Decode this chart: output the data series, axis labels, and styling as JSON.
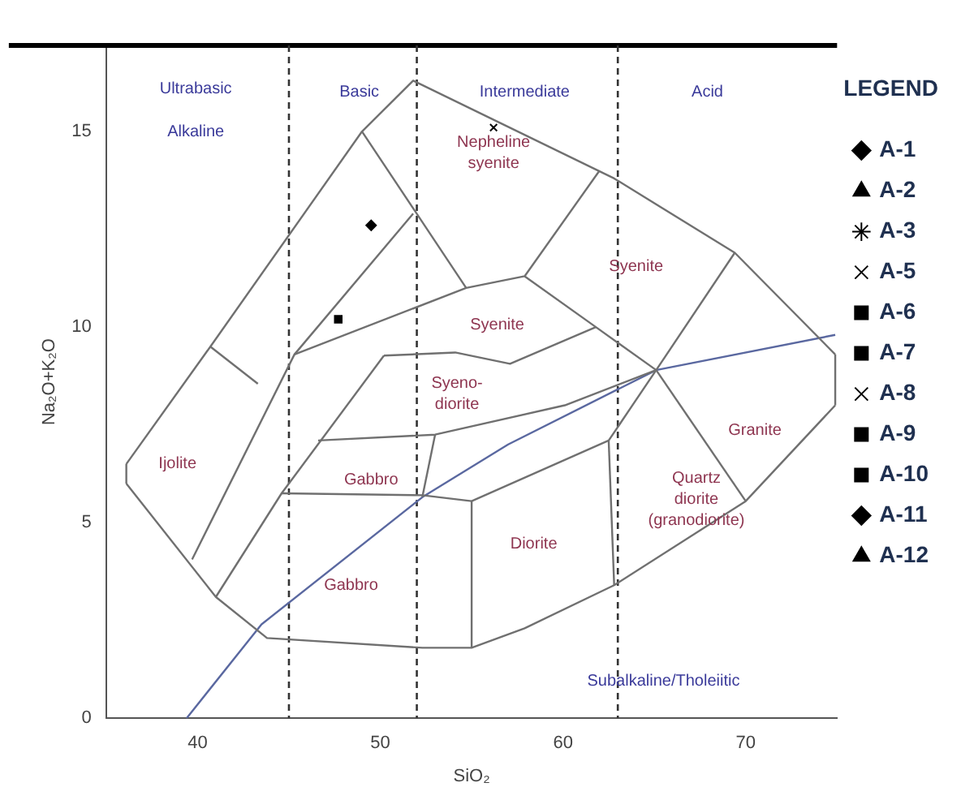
{
  "chart_data": {
    "type": "scatter",
    "xlabel": "SiO₂",
    "ylabel": "Na₂O+K₂O",
    "legend_title": "LEGEND",
    "legend": "right",
    "grid": false,
    "xlim": [
      35,
      75
    ],
    "ylim": [
      0,
      17.2
    ],
    "xticks": [
      40,
      50,
      60,
      70
    ],
    "yticks": [
      0,
      5,
      10,
      15
    ],
    "series": [
      {
        "name": "A-1",
        "color": "#000000",
        "marker": "diamond"
      },
      {
        "name": "A-2",
        "color": "#000000",
        "marker": "triangle"
      },
      {
        "name": "A-3",
        "color": "#000000",
        "marker": "star"
      },
      {
        "name": "A-5",
        "color": "#000000",
        "marker": "cross"
      },
      {
        "name": "A-6",
        "color": "#000000",
        "marker": "square"
      },
      {
        "name": "A-7",
        "color": "#000000",
        "marker": "square"
      },
      {
        "name": "A-8",
        "color": "#000000",
        "marker": "cross",
        "x": [
          56.2
        ],
        "values": [
          15.1
        ]
      },
      {
        "name": "A-9",
        "color": "#000000",
        "marker": "square",
        "x": [
          47.7
        ],
        "values": [
          10.2
        ]
      },
      {
        "name": "A-10",
        "color": "#000000",
        "marker": "square"
      },
      {
        "name": "A-11",
        "color": "#000000",
        "marker": "diamond",
        "x": [
          49.5
        ],
        "values": [
          12.6
        ]
      },
      {
        "name": "A-12",
        "color": "#000000",
        "marker": "triangle"
      },
      {
        "type": "line",
        "color": "#707070",
        "marker": "none",
        "x": [
          36.1,
          40.7,
          49.0,
          51.8,
          62.8,
          69.4,
          74.9
        ],
        "values": [
          6.5,
          9.5,
          15.0,
          16.3,
          13.8,
          11.9,
          9.3
        ]
      },
      {
        "type": "line",
        "color": "#707070",
        "marker": "none",
        "x": [
          36.1,
          41.0,
          43.8,
          52.3,
          55.0,
          57.9,
          62.8,
          70.0,
          74.9
        ],
        "values": [
          6.0,
          3.1,
          2.05,
          1.8,
          1.8,
          2.3,
          3.4,
          5.55,
          8.0
        ]
      },
      {
        "type": "line",
        "color": "#707070",
        "marker": "none",
        "x": [
          36.1,
          36.1
        ],
        "values": [
          6.0,
          6.5
        ]
      },
      {
        "type": "line",
        "color": "#707070",
        "marker": "none",
        "x": [
          74.9,
          74.9
        ],
        "values": [
          8.0,
          9.3
        ]
      },
      {
        "type": "line",
        "color": "#707070",
        "marker": "none",
        "x": [
          49.0,
          54.7,
          57.9,
          62.0
        ],
        "values": [
          15.0,
          11.0,
          11.3,
          14.0
        ]
      },
      {
        "type": "line",
        "color": "#707070",
        "marker": "none",
        "x": [
          57.9,
          61.8,
          65.1,
          69.4
        ],
        "values": [
          11.3,
          10.0,
          8.9,
          11.9
        ]
      },
      {
        "type": "line",
        "color": "#707070",
        "marker": "none",
        "x": [
          65.1,
          70.0
        ],
        "values": [
          8.9,
          5.55
        ]
      },
      {
        "type": "line",
        "color": "#707070",
        "marker": "none",
        "x": [
          44.6,
          52.3,
          55.0,
          62.5,
          65.1
        ],
        "values": [
          5.75,
          5.7,
          5.55,
          7.1,
          8.9
        ]
      },
      {
        "type": "line",
        "color": "#707070",
        "marker": "none",
        "x": [
          62.5,
          62.8
        ],
        "values": [
          7.1,
          3.4
        ]
      },
      {
        "type": "line",
        "color": "#707070",
        "marker": "none",
        "x": [
          50.2,
          54.1,
          57.1,
          61.8
        ],
        "values": [
          9.27,
          9.35,
          9.06,
          10.0
        ]
      },
      {
        "type": "line",
        "color": "#707070",
        "marker": "none",
        "x": [
          45.3,
          54.7
        ],
        "values": [
          9.3,
          11.0
        ]
      },
      {
        "type": "line",
        "color": "#707070",
        "marker": "none",
        "x": [
          46.6,
          53.0,
          60.1,
          65.1
        ],
        "values": [
          7.1,
          7.25,
          8.0,
          8.9
        ]
      },
      {
        "type": "line",
        "color": "#707070",
        "marker": "none",
        "x": [
          55.0,
          55.0
        ],
        "values": [
          1.8,
          5.55
        ]
      },
      {
        "type": "line",
        "color": "#707070",
        "marker": "none",
        "x": [
          52.3,
          53.0
        ],
        "values": [
          5.65,
          7.25
        ]
      },
      {
        "type": "line",
        "color": "#707070",
        "marker": "none",
        "x": [
          41.0,
          44.6,
          50.2
        ],
        "values": [
          3.1,
          5.75,
          9.27
        ]
      },
      {
        "type": "line",
        "color": "#707070",
        "marker": "none",
        "x": [
          39.7,
          45.3,
          51.8
        ],
        "values": [
          4.06,
          9.3,
          12.9
        ]
      },
      {
        "type": "line",
        "color": "#707070",
        "marker": "none",
        "x": [
          40.7,
          43.3
        ],
        "values": [
          9.5,
          8.55
        ]
      },
      {
        "type": "line",
        "color": "#5a68a0",
        "marker": "none",
        "x": [
          39.4,
          43.5,
          52.3,
          57.0,
          65.1,
          74.9
        ],
        "values": [
          0,
          2.4,
          5.65,
          7.0,
          8.9,
          9.8
        ]
      }
    ],
    "ref_lines": [
      {
        "axis": "x",
        "value": 45,
        "color": "#333333",
        "line_style": "dashed"
      },
      {
        "axis": "x",
        "value": 52,
        "color": "#333333",
        "line_style": "dashed"
      },
      {
        "axis": "x",
        "value": 63,
        "color": "#333333",
        "line_style": "dashed"
      }
    ],
    "annotations": [
      "Ultrabasic",
      "Alkaline",
      "Basic",
      "Intermediate",
      "Acid",
      "Subalkaline/Tholeiitic",
      "Nepheline\nsyenite",
      "Syenite",
      "Syenite",
      "Syeno-\ndiorite",
      "Granite",
      "Quartz\ndiorite\n(granodiorite)",
      "Diorite",
      "Gabbro",
      "Gabbro",
      "Ijolite"
    ]
  }
}
